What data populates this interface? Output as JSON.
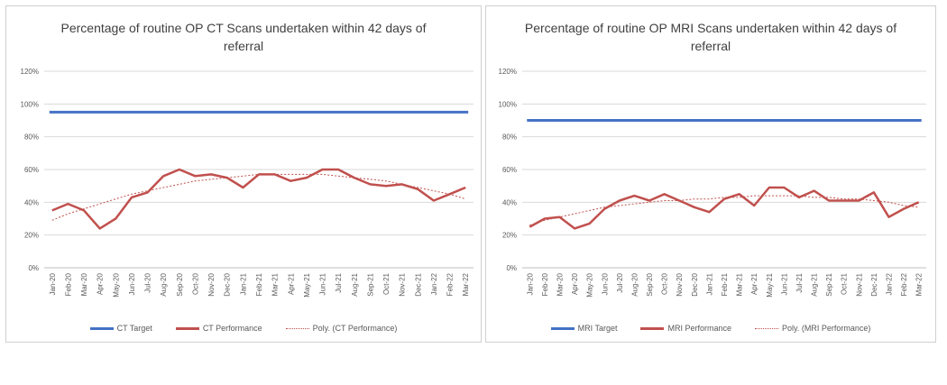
{
  "colors": {
    "target": "#4472c4",
    "performance": "#c0504d",
    "trend": "#c0504d",
    "grid": "#d9d9d9",
    "axis": "#bfbfbf"
  },
  "chart_data": [
    {
      "type": "line",
      "title": "Percentage of routine OP CT Scans undertaken within 42 days of referral",
      "yticks": [
        "0%",
        "20%",
        "40%",
        "60%",
        "80%",
        "100%",
        "120%"
      ],
      "ylim": [
        0,
        120
      ],
      "categories": [
        "Jan-20",
        "Feb-20",
        "Mar-20",
        "Apr-20",
        "May-20",
        "Jun-20",
        "Jul-20",
        "Aug-20",
        "Sep-20",
        "Oct-20",
        "Nov-20",
        "Dec-20",
        "Jan-21",
        "Feb-21",
        "Mar-21",
        "Apr-21",
        "May-21",
        "Jun-21",
        "Jul-21",
        "Aug-21",
        "Sep-21",
        "Oct-21",
        "Nov-21",
        "Dec-21",
        "Jan-22",
        "Feb-22",
        "Mar-22"
      ],
      "series": [
        {
          "name": "CT Target",
          "kind": "target",
          "values": [
            95,
            95,
            95,
            95,
            95,
            95,
            95,
            95,
            95,
            95,
            95,
            95,
            95,
            95,
            95,
            95,
            95,
            95,
            95,
            95,
            95,
            95,
            95,
            95,
            95,
            95,
            95
          ]
        },
        {
          "name": "CT Performance",
          "kind": "performance",
          "values": [
            35,
            39,
            35,
            24,
            30,
            43,
            46,
            56,
            60,
            56,
            57,
            55,
            49,
            57,
            57,
            53,
            55,
            60,
            60,
            55,
            51,
            50,
            51,
            48,
            41,
            45,
            49
          ]
        },
        {
          "name": "Poly. (CT Performance)",
          "kind": "trend",
          "values": [
            29,
            33,
            36,
            39,
            42,
            45,
            47,
            49,
            51,
            53,
            54,
            55,
            56,
            57,
            57,
            57,
            57,
            57,
            56,
            55,
            54,
            53,
            51,
            49,
            47,
            45,
            42
          ]
        }
      ]
    },
    {
      "type": "line",
      "title": "Percentage of routine OP MRI Scans undertaken within 42 days of referral",
      "yticks": [
        "0%",
        "20%",
        "40%",
        "60%",
        "80%",
        "100%",
        "120%"
      ],
      "ylim": [
        0,
        120
      ],
      "categories": [
        "Jan-20",
        "Feb-20",
        "Mar-20",
        "Apr-20",
        "May-20",
        "Jun-20",
        "Jul-20",
        "Aug-20",
        "Sep-20",
        "Oct-20",
        "Nov-20",
        "Dec-20",
        "Jan-21",
        "Feb-21",
        "Mar-21",
        "Apr-21",
        "May-21",
        "Jun-21",
        "Jul-21",
        "Aug-21",
        "Sep-21",
        "Oct-21",
        "Nov-21",
        "Dec-21",
        "Jan-22",
        "Feb-22",
        "Mar-22"
      ],
      "series": [
        {
          "name": "MRI Target",
          "kind": "target",
          "values": [
            90,
            90,
            90,
            90,
            90,
            90,
            90,
            90,
            90,
            90,
            90,
            90,
            90,
            90,
            90,
            90,
            90,
            90,
            90,
            90,
            90,
            90,
            90,
            90,
            90,
            90,
            90
          ]
        },
        {
          "name": "MRI Performance",
          "kind": "performance",
          "values": [
            25,
            30,
            31,
            24,
            27,
            36,
            41,
            44,
            41,
            45,
            41,
            37,
            34,
            42,
            45,
            38,
            49,
            49,
            43,
            47,
            41,
            41,
            41,
            46,
            31,
            36,
            40
          ]
        },
        {
          "name": "Poly. (MRI Performance)",
          "kind": "trend",
          "values": [
            26,
            29,
            31,
            33,
            35,
            37,
            38,
            39,
            40,
            41,
            41,
            42,
            42,
            43,
            43,
            44,
            44,
            44,
            44,
            43,
            43,
            42,
            42,
            41,
            40,
            38,
            37
          ]
        }
      ]
    }
  ]
}
